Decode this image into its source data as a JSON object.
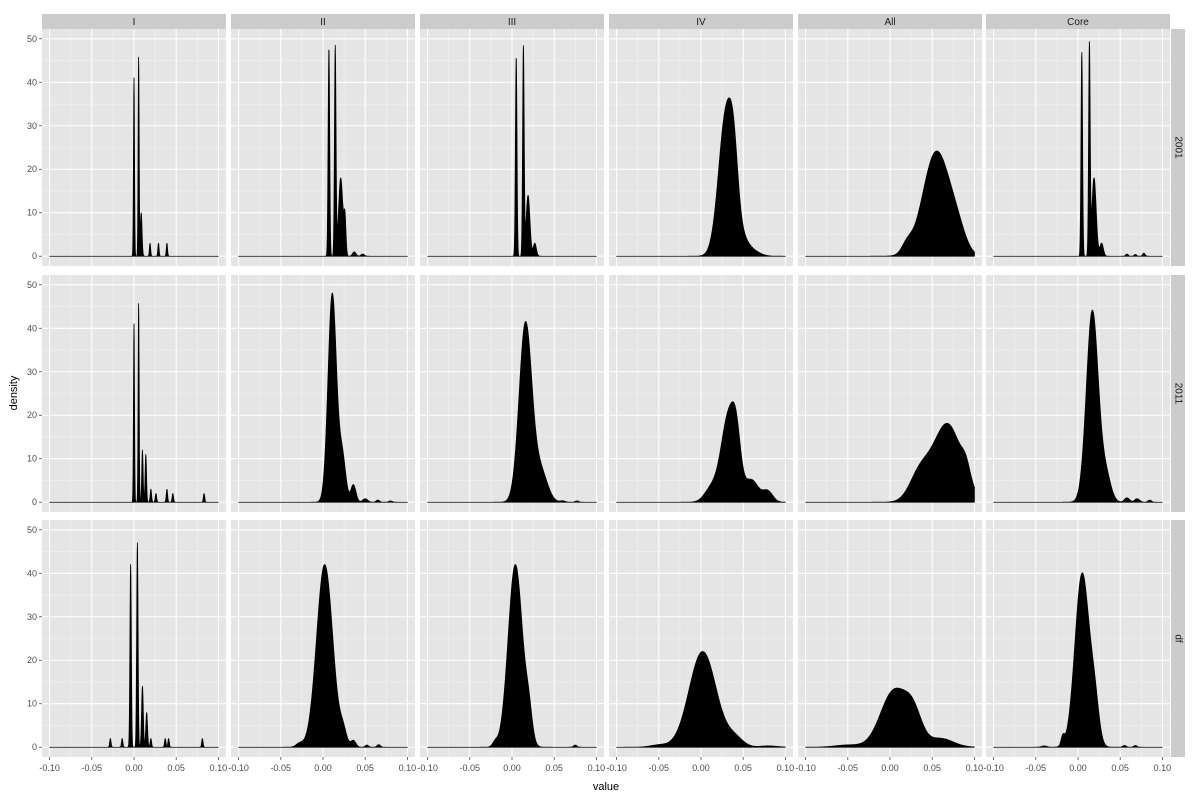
{
  "chart_data": {
    "type": "area",
    "subtype": "faceted density plot (facet grid)",
    "xlabel": "value",
    "ylabel": "density",
    "xlim": [
      -0.1,
      0.1
    ],
    "ylim": [
      0,
      50
    ],
    "x_ticks": [
      -0.1,
      -0.05,
      0.0,
      0.05,
      0.1
    ],
    "x_tick_labels": [
      "-0.10",
      "-0.05",
      "0.00",
      "0.05",
      "0.10"
    ],
    "y_ticks": [
      0,
      10,
      20,
      30,
      40,
      50
    ],
    "y_tick_labels": [
      "0",
      "10",
      "20",
      "30",
      "40",
      "50"
    ],
    "grid": true,
    "fill_color": "#000000",
    "panel_color": "#E5E5E5",
    "strip_color": "#CCCCCC",
    "columns": [
      "I",
      "II",
      "III",
      "IV",
      "All",
      "Core"
    ],
    "rows": [
      "2001",
      "2011",
      "df"
    ],
    "series": [
      {
        "row": "2001",
        "column": "I",
        "peaks": [
          [
            0.0,
            0.0006,
            41
          ],
          [
            0.0055,
            0.0006,
            46
          ],
          [
            0.0085,
            0.001,
            10
          ],
          [
            0.019,
            0.0007,
            3
          ],
          [
            0.029,
            0.0007,
            3
          ],
          [
            0.039,
            0.0007,
            3
          ]
        ]
      },
      {
        "row": "2001",
        "column": "II",
        "peaks": [
          [
            0.007,
            0.0009,
            48
          ],
          [
            0.0145,
            0.0009,
            48
          ],
          [
            0.021,
            0.0025,
            18
          ],
          [
            0.026,
            0.0012,
            8
          ],
          [
            0.037,
            0.002,
            1
          ],
          [
            0.047,
            0.002,
            0.5
          ]
        ]
      },
      {
        "row": "2001",
        "column": "III",
        "peaks": [
          [
            0.005,
            0.0009,
            46
          ],
          [
            0.0135,
            0.0009,
            48
          ],
          [
            0.019,
            0.0022,
            14
          ],
          [
            0.027,
            0.0018,
            3
          ]
        ]
      },
      {
        "row": "2001",
        "column": "IV",
        "peaks": [
          [
            0.03,
            0.009,
            33
          ],
          [
            0.039,
            0.005,
            10
          ],
          [
            0.05,
            0.008,
            3
          ],
          [
            0.064,
            0.008,
            0.8
          ]
        ]
      },
      {
        "row": "2001",
        "column": "All",
        "peaks": [
          [
            0.055,
            0.016,
            24
          ],
          [
            0.08,
            0.01,
            4
          ],
          [
            0.02,
            0.006,
            2
          ]
        ]
      },
      {
        "row": "2001",
        "column": "Core",
        "peaks": [
          [
            0.0045,
            0.0009,
            47
          ],
          [
            0.0135,
            0.0009,
            48
          ],
          [
            0.019,
            0.0025,
            18
          ],
          [
            0.028,
            0.002,
            3
          ],
          [
            0.058,
            0.0015,
            0.5
          ],
          [
            0.068,
            0.0015,
            0.4
          ],
          [
            0.078,
            0.0015,
            0.7
          ]
        ]
      },
      {
        "row": "2011",
        "column": "I",
        "peaks": [
          [
            0.0,
            0.0006,
            41
          ],
          [
            0.0055,
            0.0006,
            46
          ],
          [
            0.01,
            0.0008,
            12
          ],
          [
            0.014,
            0.0008,
            11
          ],
          [
            0.02,
            0.0008,
            3
          ],
          [
            0.026,
            0.0008,
            2
          ],
          [
            0.039,
            0.0008,
            3
          ],
          [
            0.046,
            0.0008,
            2
          ],
          [
            0.083,
            0.0008,
            2
          ]
        ]
      },
      {
        "row": "2011",
        "column": "II",
        "peaks": [
          [
            0.011,
            0.005,
            48
          ],
          [
            0.023,
            0.004,
            10
          ],
          [
            0.036,
            0.003,
            4
          ],
          [
            0.05,
            0.003,
            0.8
          ],
          [
            0.065,
            0.002,
            0.5
          ],
          [
            0.08,
            0.002,
            0.3
          ]
        ]
      },
      {
        "row": "2011",
        "column": "III",
        "peaks": [
          [
            0.016,
            0.0075,
            41
          ],
          [
            0.034,
            0.008,
            7
          ],
          [
            0.06,
            0.003,
            0.3
          ],
          [
            0.077,
            0.002,
            0.3
          ]
        ]
      },
      {
        "row": "2011",
        "column": "IV",
        "peaks": [
          [
            0.033,
            0.009,
            20
          ],
          [
            0.042,
            0.005,
            8
          ],
          [
            0.06,
            0.008,
            5
          ],
          [
            0.079,
            0.006,
            2.5
          ],
          [
            0.012,
            0.008,
            3
          ]
        ]
      },
      {
        "row": "2011",
        "column": "All",
        "peaks": [
          [
            0.068,
            0.017,
            18
          ],
          [
            0.035,
            0.012,
            6
          ],
          [
            0.09,
            0.005,
            3
          ]
        ]
      },
      {
        "row": "2011",
        "column": "Core",
        "peaks": [
          [
            0.017,
            0.007,
            44
          ],
          [
            0.033,
            0.006,
            6
          ],
          [
            0.058,
            0.003,
            1
          ],
          [
            0.07,
            0.003,
            0.8
          ],
          [
            0.085,
            0.002,
            0.5
          ]
        ]
      },
      {
        "row": "df",
        "column": "I",
        "peaks": [
          [
            -0.004,
            0.0008,
            42
          ],
          [
            0.004,
            0.0008,
            47
          ],
          [
            0.01,
            0.001,
            14
          ],
          [
            0.015,
            0.001,
            8
          ],
          [
            0.02,
            0.0008,
            2
          ],
          [
            -0.028,
            0.0008,
            2
          ],
          [
            -0.014,
            0.0008,
            2
          ],
          [
            0.037,
            0.0008,
            2
          ],
          [
            0.041,
            0.0008,
            2
          ],
          [
            0.081,
            0.0008,
            2
          ]
        ]
      },
      {
        "row": "df",
        "column": "II",
        "peaks": [
          [
            0.002,
            0.0095,
            42
          ],
          [
            0.024,
            0.004,
            3
          ],
          [
            0.036,
            0.003,
            1.5
          ],
          [
            -0.028,
            0.004,
            0.8
          ],
          [
            0.052,
            0.002,
            0.5
          ],
          [
            0.066,
            0.002,
            0.6
          ]
        ]
      },
      {
        "row": "df",
        "column": "III",
        "peaks": [
          [
            0.004,
            0.0085,
            42
          ],
          [
            0.02,
            0.004,
            6
          ],
          [
            -0.02,
            0.003,
            1
          ],
          [
            0.075,
            0.002,
            0.5
          ]
        ]
      },
      {
        "row": "df",
        "column": "IV",
        "peaks": [
          [
            0.002,
            0.016,
            22
          ],
          [
            0.04,
            0.01,
            2
          ],
          [
            -0.05,
            0.01,
            0.5
          ],
          [
            0.08,
            0.01,
            0.3
          ]
        ]
      },
      {
        "row": "df",
        "column": "All",
        "peaks": [
          [
            0.005,
            0.016,
            13
          ],
          [
            0.028,
            0.01,
            6
          ],
          [
            0.06,
            0.015,
            2
          ],
          [
            -0.05,
            0.015,
            0.5
          ]
        ]
      },
      {
        "row": "df",
        "column": "Core",
        "peaks": [
          [
            0.005,
            0.0085,
            40
          ],
          [
            0.02,
            0.005,
            8
          ],
          [
            -0.04,
            0.003,
            0.3
          ],
          [
            -0.018,
            0.002,
            2
          ],
          [
            0.055,
            0.002,
            0.4
          ],
          [
            0.068,
            0.002,
            0.4
          ]
        ]
      }
    ]
  }
}
